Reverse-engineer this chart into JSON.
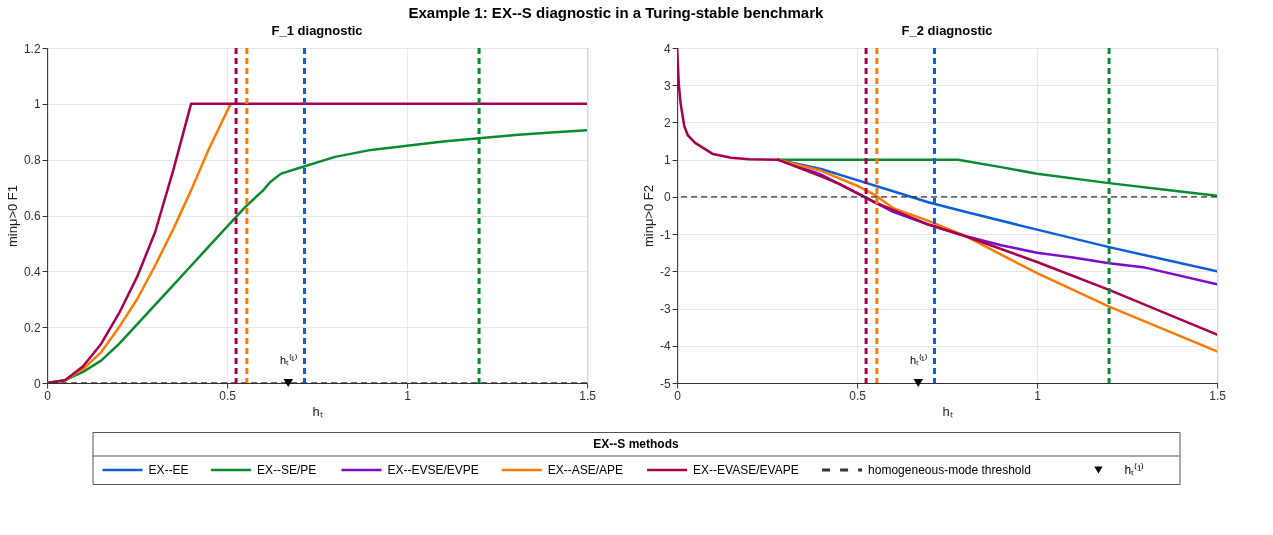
{
  "chart_data": [
    {
      "type": "line",
      "title": "Example 1: EX--S diagnostic in a Turing-stable benchmark",
      "subtitle": "F_1 diagnostic",
      "xlabel": "hₜ",
      "ylabel": "minμ>0 F1",
      "xlim": [
        0,
        1.5
      ],
      "xticks": [
        0,
        0.5,
        1,
        1.5
      ],
      "ylim": [
        0,
        1.2
      ],
      "yticks": [
        0,
        0.2,
        0.4,
        0.6,
        0.8,
        1,
        1.2
      ],
      "grid": true,
      "line_style": "solid",
      "series": [
        {
          "color": "#0b8a32",
          "x": [
            0,
            0.05,
            0.1,
            0.15,
            0.2,
            0.25,
            0.3,
            0.35,
            0.4,
            0.45,
            0.5,
            0.55,
            0.6,
            0.62,
            0.65,
            0.7,
            0.8,
            0.9,
            1.0,
            1.1,
            1.2,
            1.3,
            1.4,
            1.5
          ],
          "values": [
            0,
            0.01,
            0.04,
            0.08,
            0.14,
            0.21,
            0.28,
            0.35,
            0.42,
            0.49,
            0.56,
            0.63,
            0.69,
            0.72,
            0.75,
            0.77,
            0.81,
            0.835,
            0.85,
            0.865,
            0.877,
            0.888,
            0.897,
            0.905
          ]
        },
        {
          "color": "#f97b06",
          "x": [
            0,
            0.05,
            0.1,
            0.15,
            0.2,
            0.25,
            0.3,
            0.35,
            0.4,
            0.45,
            0.51
          ],
          "values": [
            0,
            0.01,
            0.05,
            0.11,
            0.2,
            0.3,
            0.42,
            0.55,
            0.69,
            0.84,
            1
          ]
        },
        {
          "color": "#a6004e",
          "x": [
            0,
            0.05,
            0.1,
            0.15,
            0.2,
            0.25,
            0.3,
            0.35,
            0.4,
            0.6,
            0.8,
            1.0,
            1.2,
            1.5
          ],
          "values": [
            0,
            0.01,
            0.06,
            0.14,
            0.25,
            0.38,
            0.54,
            0.76,
            1,
            1,
            1,
            1,
            1,
            1
          ]
        },
        {
          "type": "scatter",
          "marker": "triangle",
          "color": "#000000",
          "x": [
            0.67
          ],
          "values": [
            0
          ]
        }
      ],
      "ref_lines": [
        {
          "axis": "y",
          "value": 0,
          "label": null,
          "color": "#333333",
          "line_style": "dashed"
        },
        {
          "axis": "x",
          "value": 0.525,
          "label": null,
          "color": "#a6004e",
          "line_style": "dashed"
        },
        {
          "axis": "x",
          "value": 0.555,
          "label": null,
          "color": "#f97b06",
          "line_style": "dashed"
        },
        {
          "axis": "x",
          "value": 0.715,
          "label": null,
          "color": "#0b5ed7",
          "line_style": "dashed"
        },
        {
          "axis": "x",
          "value": 1.2,
          "label": null,
          "color": "#0b8a32",
          "line_style": "dashed"
        }
      ],
      "annotations": [
        {
          "text": "hₜ⁽¹⁾",
          "x": 0.67,
          "y": 0
        }
      ]
    },
    {
      "type": "line",
      "subtitle": "F_2 diagnostic",
      "xlabel": "hₜ",
      "ylabel": "minμ>0 F2",
      "legend": "bottom",
      "legend_title": "EX--S methods",
      "xlim": [
        0,
        1.5
      ],
      "xticks": [
        0,
        0.5,
        1,
        1.5
      ],
      "ylim": [
        -5,
        4
      ],
      "yticks": [
        -5,
        -4,
        -3,
        -2,
        -1,
        0,
        1,
        2,
        3,
        4
      ],
      "grid": true,
      "line_style": "solid",
      "series": [
        {
          "name": "EX--EE",
          "color": "#0b5ed7",
          "x": [
            0.28,
            0.4,
            0.5,
            0.6,
            0.7,
            0.8,
            1.0,
            1.2,
            1.5
          ],
          "values": [
            1,
            0.75,
            0.45,
            0.15,
            -0.15,
            -0.4,
            -0.88,
            -1.35,
            -2.0
          ]
        },
        {
          "name": "EX--SE/PE",
          "color": "#0b8a32",
          "x": [
            0.28,
            0.5,
            0.78,
            0.9,
            1.0,
            1.2,
            1.35,
            1.5
          ],
          "values": [
            1,
            1,
            1,
            0.8,
            0.62,
            0.37,
            0.2,
            0.03
          ]
        },
        {
          "name": "EX--EVSE/EVPE",
          "color": "#7e0acc",
          "x": [
            0.28,
            0.4,
            0.5,
            0.6,
            0.7,
            0.8,
            0.9,
            1.0,
            1.1,
            1.2,
            1.3,
            1.5
          ],
          "values": [
            1,
            0.6,
            0.1,
            -0.4,
            -0.75,
            -1.05,
            -1.3,
            -1.5,
            -1.63,
            -1.78,
            -1.9,
            -2.35
          ]
        },
        {
          "name": "EX--ASE/APE",
          "color": "#f97b06",
          "x": [
            0.28,
            0.4,
            0.5,
            0.55,
            0.6,
            0.7,
            0.8,
            1.0,
            1.2,
            1.5
          ],
          "values": [
            1,
            0.7,
            0.3,
            0.05,
            -0.3,
            -0.65,
            -1.05,
            -2.05,
            -2.95,
            -4.15
          ]
        },
        {
          "name": "EX--EVASE/EVAPE",
          "color": "#a6004e",
          "x": [
            0,
            0.005,
            0.01,
            0.02,
            0.03,
            0.05,
            0.1,
            0.15,
            0.2,
            0.28,
            0.4,
            0.45,
            0.5,
            0.55,
            0.6,
            0.7,
            0.8,
            1.0,
            1.2,
            1.5
          ],
          "values": [
            4,
            3.0,
            2.5,
            1.9,
            1.65,
            1.45,
            1.15,
            1.05,
            1.01,
            1,
            0.55,
            0.35,
            0.1,
            -0.15,
            -0.35,
            -0.75,
            -1.05,
            -1.75,
            -2.5,
            -3.7
          ]
        },
        {
          "name": "hₜ⁽¹⁾",
          "type": "scatter",
          "marker": "triangle",
          "color": "#000000",
          "x": [
            0.67
          ],
          "values": [
            -5
          ]
        }
      ],
      "ref_lines": [
        {
          "axis": "y",
          "value": 0,
          "label": "homogeneous-mode threshold",
          "color": "#333333",
          "line_style": "dashed"
        },
        {
          "axis": "x",
          "value": 0.525,
          "label": null,
          "color": "#a6004e",
          "line_style": "dashed"
        },
        {
          "axis": "x",
          "value": 0.555,
          "label": null,
          "color": "#f97b06",
          "line_style": "dashed"
        },
        {
          "axis": "x",
          "value": 0.715,
          "label": null,
          "color": "#0b5ed7",
          "line_style": "dashed"
        },
        {
          "axis": "x",
          "value": 1.2,
          "label": null,
          "color": "#0b8a32",
          "line_style": "dashed"
        }
      ],
      "annotations": [
        {
          "text": "hₜ⁽¹⁾",
          "x": 0.67,
          "y": -5
        }
      ]
    }
  ]
}
